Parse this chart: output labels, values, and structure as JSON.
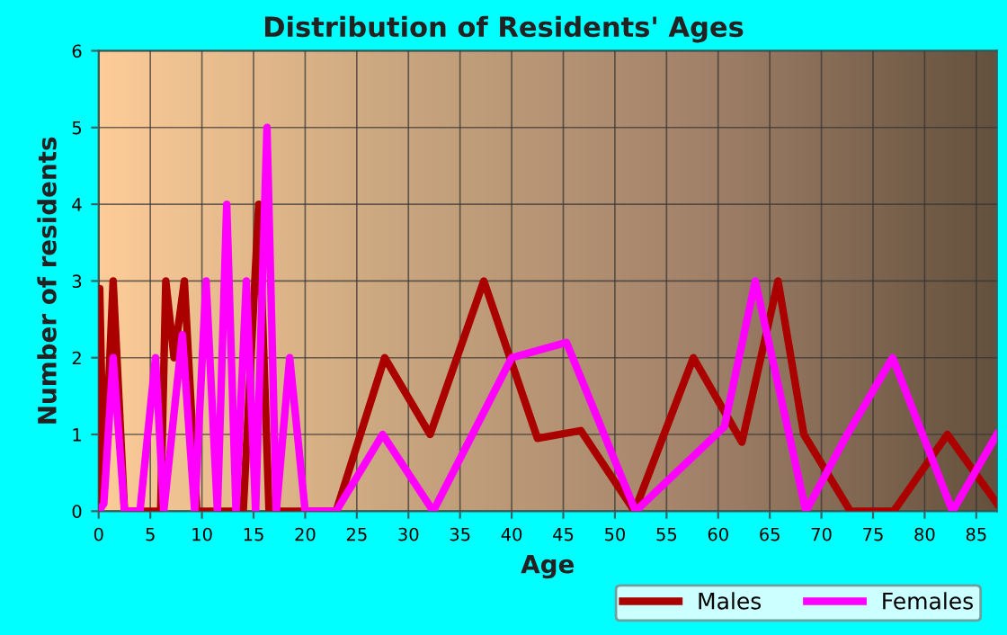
{
  "chart_data": {
    "type": "line",
    "title": "Distribution of Residents' Ages",
    "xlabel": "Age",
    "ylabel": "Number of residents",
    "xlim": [
      0,
      87
    ],
    "xticks": [
      0,
      5,
      10,
      15,
      20,
      25,
      30,
      35,
      40,
      45,
      50,
      55,
      60,
      65,
      70,
      75,
      80,
      85
    ],
    "ylim": [
      0,
      6
    ],
    "yticks": [
      0,
      1,
      2,
      3,
      4,
      5,
      6
    ],
    "grid": true,
    "legend": "bottom",
    "marker": "none",
    "line_style": "solid",
    "series": [
      {
        "name": "Males",
        "color": "#aa0000",
        "x": [
          0,
          0.1,
          0.5,
          1.4,
          2.5,
          5,
          6,
          6.5,
          7.3,
          8.3,
          9.5,
          14,
          15.5,
          16.5,
          23,
          27.7,
          32.1,
          37.3,
          42.5,
          46.7,
          51.9,
          57.6,
          62.3,
          65.8,
          68.3,
          72.8,
          77,
          82.2,
          87
        ],
        "values": [
          0,
          2.9,
          0.2,
          3,
          0,
          0,
          0,
          3,
          2,
          3,
          0,
          0,
          4,
          0,
          0,
          2,
          1,
          3,
          0.95,
          1.05,
          0,
          2,
          0.9,
          3,
          1,
          0,
          0,
          1,
          0.1
        ]
      },
      {
        "name": "Females",
        "color": "#ff00ff",
        "x": [
          0,
          0.5,
          1.4,
          2.5,
          4,
          5.5,
          6.3,
          8.1,
          9.3,
          10.4,
          11.5,
          12.4,
          13.3,
          14.3,
          15.2,
          16.3,
          17.2,
          18.5,
          20,
          23,
          27.5,
          32.4,
          40,
          45.3,
          52,
          60.6,
          63.6,
          68.5,
          72.5,
          76.9,
          82.7,
          87
        ],
        "values": [
          0,
          0.1,
          2,
          0,
          0,
          2,
          0,
          2.3,
          0,
          3,
          0,
          4,
          0,
          3,
          0,
          5,
          0,
          2,
          0,
          0,
          1,
          0,
          2,
          2.2,
          0,
          1.1,
          3,
          0,
          1,
          2,
          0,
          1
        ]
      }
    ]
  }
}
